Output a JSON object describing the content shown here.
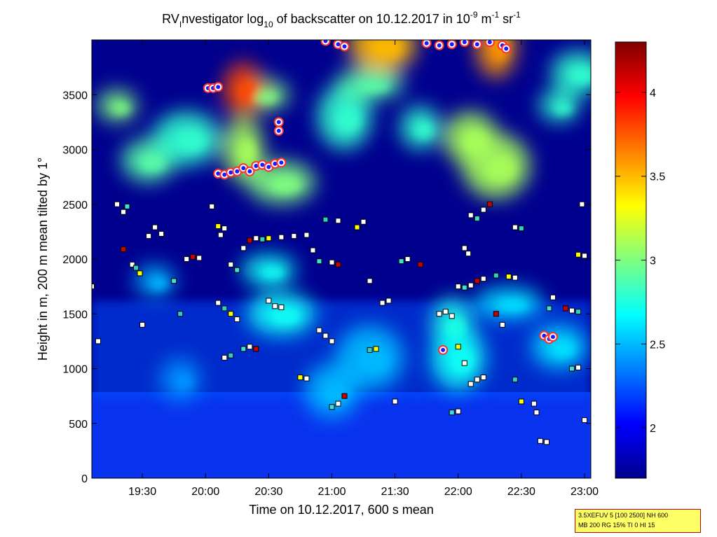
{
  "chart_data": {
    "type": "heatmap",
    "title": "RV Investigator log10 of backscatter on 10.12.2017 in 10-9 m-1 sr-1",
    "title_parts": {
      "a": "RV",
      "a_sub": "I",
      "b": "nvestigator log",
      "b_sub": "10",
      "c": " of backscatter on 10.12.2017 in 10",
      "c_sup": "-9",
      "d": " m",
      "d_sup": "-1",
      "e": " sr",
      "e_sup": "-1"
    },
    "xlabel": "Time on 10.12.2017, 600 s mean",
    "ylabel": "Height in m, 200 m mean tilted by 1°",
    "xlim_hours": [
      19.1,
      23.05
    ],
    "x_ticks": [
      "19:30",
      "20:00",
      "20:30",
      "21:00",
      "21:30",
      "22:00",
      "22:30",
      "23:00"
    ],
    "x_tick_hours": [
      19.5,
      20.0,
      20.5,
      21.0,
      21.5,
      22.0,
      22.5,
      23.0
    ],
    "ylim": [
      0,
      4000
    ],
    "y_ticks": [
      "0",
      "500",
      "1000",
      "1500",
      "2000",
      "2500",
      "3000",
      "3500"
    ],
    "y_tick_values": [
      0,
      500,
      1000,
      1500,
      2000,
      2500,
      3000,
      3500
    ],
    "colorbar": {
      "colormap": "jet",
      "range": [
        1.7,
        4.3
      ],
      "ticks": [
        "2",
        "2.5",
        "3",
        "3.5",
        "4"
      ],
      "tick_values": [
        2,
        2.5,
        3,
        3.5,
        4
      ]
    },
    "grid": false,
    "background_field": [
      {
        "hour": 19.3,
        "height": 3400,
        "value": 3.0
      },
      {
        "hour": 19.55,
        "height": 2900,
        "value": 2.9
      },
      {
        "hour": 19.85,
        "height": 3100,
        "value": 2.8
      },
      {
        "hour": 20.3,
        "height": 3000,
        "value": 3.1
      },
      {
        "hour": 20.45,
        "height": 3500,
        "value": 3.0
      },
      {
        "hour": 20.6,
        "height": 2700,
        "value": 3.0
      },
      {
        "hour": 20.3,
        "height": 3550,
        "value": 3.8
      },
      {
        "hour": 21.1,
        "height": 3300,
        "value": 2.8
      },
      {
        "hour": 21.3,
        "height": 3600,
        "value": 2.9
      },
      {
        "hour": 21.7,
        "height": 3200,
        "value": 2.8
      },
      {
        "hour": 22.1,
        "height": 3100,
        "value": 3.1
      },
      {
        "hour": 22.3,
        "height": 2850,
        "value": 3.1
      },
      {
        "hour": 22.8,
        "height": 3400,
        "value": 2.8
      },
      {
        "hour": 22.95,
        "height": 3700,
        "value": 2.8
      },
      {
        "hour": 21.4,
        "height": 3950,
        "value": 3.5
      },
      {
        "hour": 22.3,
        "height": 3950,
        "value": 3.6
      },
      {
        "hour": 20.5,
        "height": 1900,
        "value": 2.7
      },
      {
        "hour": 20.6,
        "height": 1500,
        "value": 2.7
      },
      {
        "hour": 21.95,
        "height": 1400,
        "value": 2.75
      },
      {
        "hour": 22.0,
        "height": 1100,
        "value": 2.7
      },
      {
        "hour": 22.4,
        "height": 1600,
        "value": 2.6
      },
      {
        "hour": 19.8,
        "height": 900,
        "value": 2.4
      },
      {
        "hour": 21.0,
        "height": 800,
        "value": 2.5
      },
      {
        "hour": 21.3,
        "height": 1100,
        "value": 2.5
      },
      {
        "hour": 19.6,
        "height": 1800,
        "value": 2.5
      },
      {
        "hour": 22.8,
        "height": 1200,
        "value": 2.6
      }
    ],
    "cloud_base_series": [
      {
        "name": "cloud base",
        "points": [
          {
            "hour": 20.1,
            "height": 2780
          },
          {
            "hour": 20.15,
            "height": 2770
          },
          {
            "hour": 20.2,
            "height": 2790
          },
          {
            "hour": 20.25,
            "height": 2800
          },
          {
            "hour": 20.3,
            "height": 2830
          },
          {
            "hour": 20.35,
            "height": 2800
          },
          {
            "hour": 20.4,
            "height": 2850
          },
          {
            "hour": 20.45,
            "height": 2860
          },
          {
            "hour": 20.5,
            "height": 2840
          },
          {
            "hour": 20.55,
            "height": 2870
          },
          {
            "hour": 20.6,
            "height": 2880
          },
          {
            "hour": 20.58,
            "height": 3170
          },
          {
            "hour": 20.58,
            "height": 3250
          },
          {
            "hour": 20.02,
            "height": 3560
          },
          {
            "hour": 20.06,
            "height": 3560
          },
          {
            "hour": 20.1,
            "height": 3570
          },
          {
            "hour": 20.95,
            "height": 3990
          },
          {
            "hour": 21.05,
            "height": 3960
          },
          {
            "hour": 21.1,
            "height": 3940
          },
          {
            "hour": 21.75,
            "height": 3970
          },
          {
            "hour": 21.85,
            "height": 3950
          },
          {
            "hour": 21.95,
            "height": 3960
          },
          {
            "hour": 22.05,
            "height": 3980
          },
          {
            "hour": 22.15,
            "height": 3960
          },
          {
            "hour": 22.25,
            "height": 3980
          },
          {
            "hour": 22.35,
            "height": 3950
          },
          {
            "hour": 22.38,
            "height": 3920
          },
          {
            "hour": 21.88,
            "height": 1170
          },
          {
            "hour": 22.68,
            "height": 1300
          },
          {
            "hour": 22.72,
            "height": 1270
          },
          {
            "hour": 22.75,
            "height": 1290
          }
        ]
      }
    ],
    "aerosol_layer_series": [
      {
        "name": "layer tops",
        "points": [
          {
            "hour": 19.1,
            "height": 1750
          },
          {
            "hour": 19.15,
            "height": 1250
          },
          {
            "hour": 19.3,
            "height": 2500
          },
          {
            "hour": 19.38,
            "height": 2480
          },
          {
            "hour": 19.35,
            "height": 2430
          },
          {
            "hour": 19.35,
            "height": 2090
          },
          {
            "hour": 19.42,
            "height": 1950
          },
          {
            "hour": 19.45,
            "height": 1920
          },
          {
            "hour": 19.48,
            "height": 1870
          },
          {
            "hour": 19.5,
            "height": 1400
          },
          {
            "hour": 19.55,
            "height": 2210
          },
          {
            "hour": 19.6,
            "height": 2290
          },
          {
            "hour": 19.65,
            "height": 2230
          },
          {
            "hour": 19.75,
            "height": 1800
          },
          {
            "hour": 19.85,
            "height": 2000
          },
          {
            "hour": 19.9,
            "height": 2020
          },
          {
            "hour": 19.95,
            "height": 2010
          },
          {
            "hour": 19.8,
            "height": 1500
          },
          {
            "hour": 20.1,
            "height": 2300
          },
          {
            "hour": 20.15,
            "height": 2280
          },
          {
            "hour": 20.12,
            "height": 2220
          },
          {
            "hour": 20.05,
            "height": 2480
          },
          {
            "hour": 20.2,
            "height": 1950
          },
          {
            "hour": 20.25,
            "height": 1900
          },
          {
            "hour": 20.3,
            "height": 2100
          },
          {
            "hour": 20.35,
            "height": 2170
          },
          {
            "hour": 20.4,
            "height": 2190
          },
          {
            "hour": 20.45,
            "height": 2180
          },
          {
            "hour": 20.5,
            "height": 2190
          },
          {
            "hour": 20.6,
            "height": 2200
          },
          {
            "hour": 20.7,
            "height": 2210
          },
          {
            "hour": 20.8,
            "height": 2220
          },
          {
            "hour": 20.85,
            "height": 2080
          },
          {
            "hour": 20.9,
            "height": 1980
          },
          {
            "hour": 21.0,
            "height": 1970
          },
          {
            "hour": 21.05,
            "height": 1950
          },
          {
            "hour": 20.1,
            "height": 1600
          },
          {
            "hour": 20.15,
            "height": 1550
          },
          {
            "hour": 20.2,
            "height": 1500
          },
          {
            "hour": 20.25,
            "height": 1450
          },
          {
            "hour": 20.5,
            "height": 1620
          },
          {
            "hour": 20.55,
            "height": 1570
          },
          {
            "hour": 20.6,
            "height": 1560
          },
          {
            "hour": 20.3,
            "height": 1180
          },
          {
            "hour": 20.35,
            "height": 1200
          },
          {
            "hour": 20.4,
            "height": 1180
          },
          {
            "hour": 20.15,
            "height": 1100
          },
          {
            "hour": 20.2,
            "height": 1120
          },
          {
            "hour": 20.75,
            "height": 920
          },
          {
            "hour": 20.8,
            "height": 910
          },
          {
            "hour": 20.9,
            "height": 1350
          },
          {
            "hour": 20.95,
            "height": 1300
          },
          {
            "hour": 21.0,
            "height": 1250
          },
          {
            "hour": 21.0,
            "height": 650
          },
          {
            "hour": 21.05,
            "height": 680
          },
          {
            "hour": 21.1,
            "height": 750
          },
          {
            "hour": 21.05,
            "height": 2350
          },
          {
            "hour": 20.95,
            "height": 2360
          },
          {
            "hour": 21.2,
            "height": 2290
          },
          {
            "hour": 21.25,
            "height": 2340
          },
          {
            "hour": 21.3,
            "height": 1800
          },
          {
            "hour": 21.4,
            "height": 1600
          },
          {
            "hour": 21.45,
            "height": 1620
          },
          {
            "hour": 21.55,
            "height": 1980
          },
          {
            "hour": 21.6,
            "height": 2000
          },
          {
            "hour": 21.7,
            "height": 1950
          },
          {
            "hour": 21.5,
            "height": 700
          },
          {
            "hour": 21.3,
            "height": 1170
          },
          {
            "hour": 21.35,
            "height": 1180
          },
          {
            "hour": 21.85,
            "height": 1500
          },
          {
            "hour": 21.9,
            "height": 1520
          },
          {
            "hour": 21.95,
            "height": 1480
          },
          {
            "hour": 22.0,
            "height": 1750
          },
          {
            "hour": 22.05,
            "height": 1740
          },
          {
            "hour": 22.1,
            "height": 1760
          },
          {
            "hour": 22.15,
            "height": 1800
          },
          {
            "hour": 22.2,
            "height": 1820
          },
          {
            "hour": 22.3,
            "height": 1850
          },
          {
            "hour": 22.4,
            "height": 1840
          },
          {
            "hour": 22.45,
            "height": 1830
          },
          {
            "hour": 22.05,
            "height": 2100
          },
          {
            "hour": 22.08,
            "height": 2050
          },
          {
            "hour": 22.1,
            "height": 2400
          },
          {
            "hour": 22.15,
            "height": 2370
          },
          {
            "hour": 22.2,
            "height": 2450
          },
          {
            "hour": 22.25,
            "height": 2500
          },
          {
            "hour": 22.45,
            "height": 2290
          },
          {
            "hour": 22.5,
            "height": 2280
          },
          {
            "hour": 22.0,
            "height": 1200
          },
          {
            "hour": 22.05,
            "height": 1050
          },
          {
            "hour": 22.1,
            "height": 860
          },
          {
            "hour": 22.15,
            "height": 900
          },
          {
            "hour": 22.2,
            "height": 920
          },
          {
            "hour": 21.95,
            "height": 600
          },
          {
            "hour": 22.0,
            "height": 610
          },
          {
            "hour": 22.3,
            "height": 1500
          },
          {
            "hour": 22.35,
            "height": 1400
          },
          {
            "hour": 22.45,
            "height": 900
          },
          {
            "hour": 22.5,
            "height": 700
          },
          {
            "hour": 22.6,
            "height": 680
          },
          {
            "hour": 22.62,
            "height": 600
          },
          {
            "hour": 22.65,
            "height": 340
          },
          {
            "hour": 22.7,
            "height": 330
          },
          {
            "hour": 22.9,
            "height": 1000
          },
          {
            "hour": 22.95,
            "height": 1010
          },
          {
            "hour": 22.85,
            "height": 1550
          },
          {
            "hour": 22.9,
            "height": 1530
          },
          {
            "hour": 22.95,
            "height": 1520
          },
          {
            "hour": 22.95,
            "height": 2040
          },
          {
            "hour": 23.0,
            "height": 2030
          },
          {
            "hour": 22.98,
            "height": 2500
          },
          {
            "hour": 23.0,
            "height": 530
          },
          {
            "hour": 22.75,
            "height": 1650
          },
          {
            "hour": 22.72,
            "height": 1550
          }
        ]
      }
    ]
  },
  "infobox": {
    "line1": "3.5XEFUV 5 [100 2500] NH 600",
    "line2": "MB 200 RG 15% TI 0 HI 15"
  },
  "colors": {
    "background": "#ffffff",
    "plot_base": "#00008f",
    "cloud_marker_fill": "#ffffff",
    "cloud_marker_edge": "#ff3030",
    "cloud_marker_core": "#1a1aff",
    "infobox_bg": "#ffff66",
    "infobox_border": "#cc0000"
  }
}
